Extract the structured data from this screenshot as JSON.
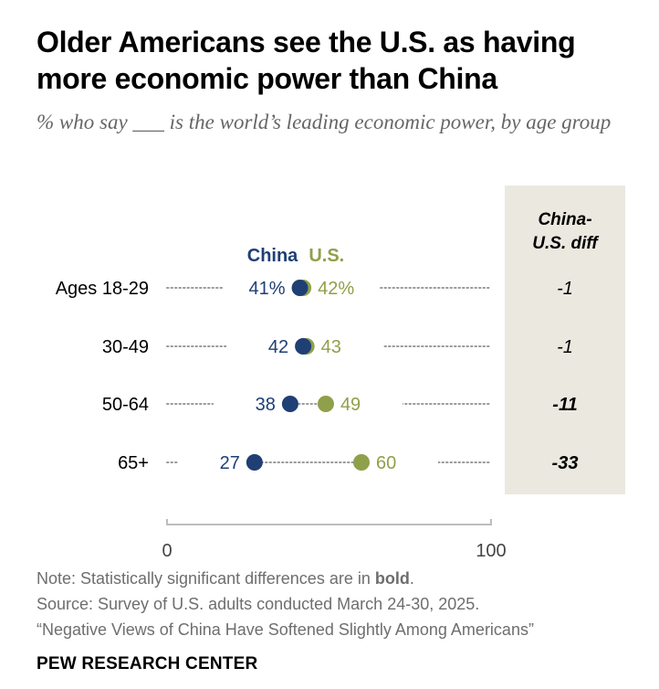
{
  "title": "Older Americans see the U.S. as having more economic power than China",
  "subtitle": "% who say ___ is the world’s leading economic power, by age group",
  "diff_header_line1": "China-",
  "diff_header_line2": "U.S. diff",
  "note_prefix": "Note: Statistically significant differences are in ",
  "note_bold": "bold",
  "note_suffix": ".",
  "source": "Source: Survey of U.S. adults conducted March 24-30, 2025.",
  "report": "“Negative Views of China Have Softened Slightly Among Americans”",
  "brand": "PEW RESEARCH CENTER",
  "colors": {
    "china": "#1f3f75",
    "us": "#8fa04a",
    "dots": "#9a9a9a",
    "axis": "#bdbdbd",
    "panel": "#ebe8e0"
  },
  "chart_data": {
    "type": "dot",
    "series": [
      {
        "name": "China",
        "color": "#1f3f75"
      },
      {
        "name": "U.S.",
        "color": "#8fa04a"
      }
    ],
    "rows": [
      {
        "label": "Ages 18-29",
        "china": 41,
        "us": 42,
        "china_label": "41%",
        "us_label": "42%",
        "diff": "-1",
        "significant": false
      },
      {
        "label": "30-49",
        "china": 42,
        "us": 43,
        "china_label": "42",
        "us_label": "43",
        "diff": "-1",
        "significant": false
      },
      {
        "label": "50-64",
        "china": 38,
        "us": 49,
        "china_label": "38",
        "us_label": "49",
        "diff": "-11",
        "significant": true
      },
      {
        "label": "65+",
        "china": 27,
        "us": 60,
        "china_label": "27",
        "us_label": "60",
        "diff": "-33",
        "significant": true
      }
    ],
    "xlim": [
      0,
      100
    ],
    "x_ticks": [
      "0",
      "100"
    ]
  }
}
